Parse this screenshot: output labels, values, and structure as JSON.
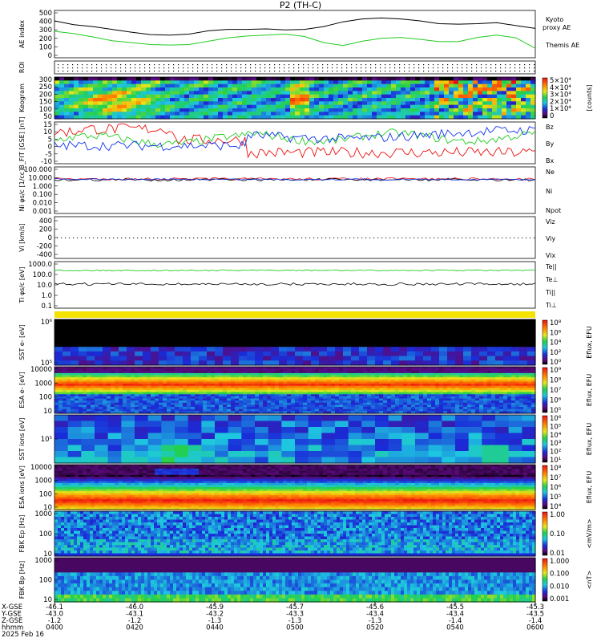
{
  "title": "P2 (TH-C)",
  "colors": {
    "black": "#000000",
    "green": "#22cc22",
    "red": "#ee1111",
    "blue": "#1133ee",
    "purple": "#7a1a8c"
  },
  "chart_data": [
    {
      "id": "ae",
      "type": "line",
      "ylabel": "AE index",
      "ylim": [
        0,
        500
      ],
      "yticks": [
        "500",
        "400",
        "300",
        "200",
        "100",
        "0"
      ],
      "legend": [
        "Kyoto",
        "proxy AE",
        "Themis AE"
      ],
      "series": [
        {
          "name": "Themis AE",
          "color": "#000000",
          "values": [
            390,
            350,
            330,
            300,
            270,
            245,
            240,
            250,
            285,
            300,
            300,
            305,
            295,
            300,
            330,
            380,
            410,
            420,
            410,
            390,
            360,
            355,
            360,
            370,
            340,
            310
          ]
        },
        {
          "name": "Kyoto proxy AE",
          "color": "#22cc22",
          "values": [
            280,
            255,
            220,
            180,
            160,
            140,
            135,
            140,
            175,
            210,
            230,
            240,
            250,
            225,
            160,
            130,
            175,
            205,
            215,
            195,
            170,
            170,
            215,
            240,
            210,
            100
          ]
        }
      ]
    },
    {
      "id": "roi",
      "type": "line",
      "ylabel": "ROI"
    },
    {
      "id": "keogram",
      "type": "heatmap",
      "ylabel": "Keogram",
      "ylim": [
        0,
        300
      ],
      "yticks": [
        "300",
        "250",
        "200",
        "150",
        "100",
        "50"
      ],
      "colorbar": {
        "ticks": [
          "5×10⁴",
          "4×10⁴",
          "3×10⁴",
          "2×10⁴",
          "1×10⁴",
          "0"
        ],
        "label": "[counts]"
      }
    },
    {
      "id": "bfield",
      "type": "line",
      "ylabel": "B_FIT [GSE] [nT]",
      "ylim": [
        -15,
        15
      ],
      "yticks": [
        "15",
        "10",
        "5",
        "0",
        "-5",
        "-10"
      ],
      "legend": [
        "Bz",
        "By",
        "Bx"
      ]
    },
    {
      "id": "density",
      "type": "line",
      "ylabel": "Ni φs/c [1/cc]",
      "yticks": [
        "100.000",
        "10.000",
        "1.000",
        "0.100",
        "0.010",
        "0.001"
      ],
      "legend": [
        "Ne",
        "Ni",
        "Npot"
      ]
    },
    {
      "id": "velocity",
      "type": "line",
      "ylabel": "Vi [km/s]",
      "ylim": [
        -500,
        500
      ],
      "yticks": [
        "400",
        "200",
        "0",
        "-200",
        "-400"
      ],
      "legend": [
        "Viz",
        "Viy",
        "Vix"
      ]
    },
    {
      "id": "temp",
      "type": "line",
      "ylabel": "Ti φs/c [eV]",
      "yticks": [
        "1000.0",
        "100.0",
        "10.0",
        "1.0",
        "0.1"
      ],
      "legend": [
        "Te||",
        "Te⊥",
        "Ti||",
        "Ti⊥"
      ]
    },
    {
      "id": "sst_e",
      "type": "heatmap",
      "ylabel": "SST e- [eV]",
      "yticks": [
        "10⁶",
        "10⁵"
      ],
      "colorbar": {
        "ticks": [
          "10⁸",
          "10⁶",
          "10⁴",
          "10²",
          "10⁰"
        ],
        "label": "Eflux, EFU"
      }
    },
    {
      "id": "esa_e",
      "type": "heatmap",
      "ylabel": "ESA e- [eV]",
      "yticks": [
        "10000",
        "1000",
        "100",
        "10"
      ],
      "colorbar": {
        "ticks": [
          "10⁹",
          "10⁸",
          "10⁷",
          "10⁶",
          "10⁵"
        ],
        "label": "Eflux, EFU"
      }
    },
    {
      "id": "sst_i",
      "type": "heatmap",
      "ylabel": "SST ions [eV]",
      "yticks": [
        "10⁵"
      ],
      "colorbar": {
        "ticks": [
          "10⁶",
          "10⁵",
          "10⁴",
          "10³",
          "10²",
          "10¹"
        ],
        "label": "Eflux, EFU"
      }
    },
    {
      "id": "esa_i",
      "type": "heatmap",
      "ylabel": "ESA ions [eV]",
      "yticks": [
        "10000",
        "1000",
        "100",
        "10"
      ],
      "colorbar": {
        "ticks": [
          "10⁸",
          "10⁷",
          "10⁶",
          "10⁵",
          "10⁴"
        ],
        "label": "Eflux, EFU"
      }
    },
    {
      "id": "fbk_e",
      "type": "heatmap",
      "ylabel": "FBK Ep [Hz]",
      "yticks": [
        "1000",
        "100",
        "10"
      ],
      "colorbar": {
        "ticks": [
          "1.00",
          "0.10",
          "0.01"
        ],
        "label": "<mV/m>"
      }
    },
    {
      "id": "fbk_b",
      "type": "heatmap",
      "ylabel": "FBK Bp [Hz]",
      "yticks": [
        "1000",
        "100",
        "10"
      ],
      "colorbar": {
        "ticks": [
          "1.000",
          "0.100",
          "0.010",
          "0.001"
        ],
        "label": "<nT>"
      }
    }
  ],
  "xaxis": {
    "row_labels": [
      "X-GSE",
      "Y-GSE",
      "Z-GSE",
      "hhmm",
      "2025 Feb 16"
    ],
    "columns": [
      {
        "x": "-46.1",
        "y": "-43.0",
        "z": "-1.2",
        "t": "0400"
      },
      {
        "x": "-46.0",
        "y": "-43.1",
        "z": "-1.2",
        "t": "0420"
      },
      {
        "x": "-45.9",
        "y": "-43.2",
        "z": "-1.3",
        "t": "0440"
      },
      {
        "x": "-45.7",
        "y": "-43.3",
        "z": "-1.3",
        "t": "0500"
      },
      {
        "x": "-45.6",
        "y": "-43.4",
        "z": "-1.3",
        "t": "0520"
      },
      {
        "x": "-45.5",
        "y": "-43.4",
        "z": "-1.4",
        "t": "0540"
      },
      {
        "x": "-45.3",
        "y": "-43.5",
        "z": "-1.4",
        "t": "0600"
      }
    ]
  }
}
